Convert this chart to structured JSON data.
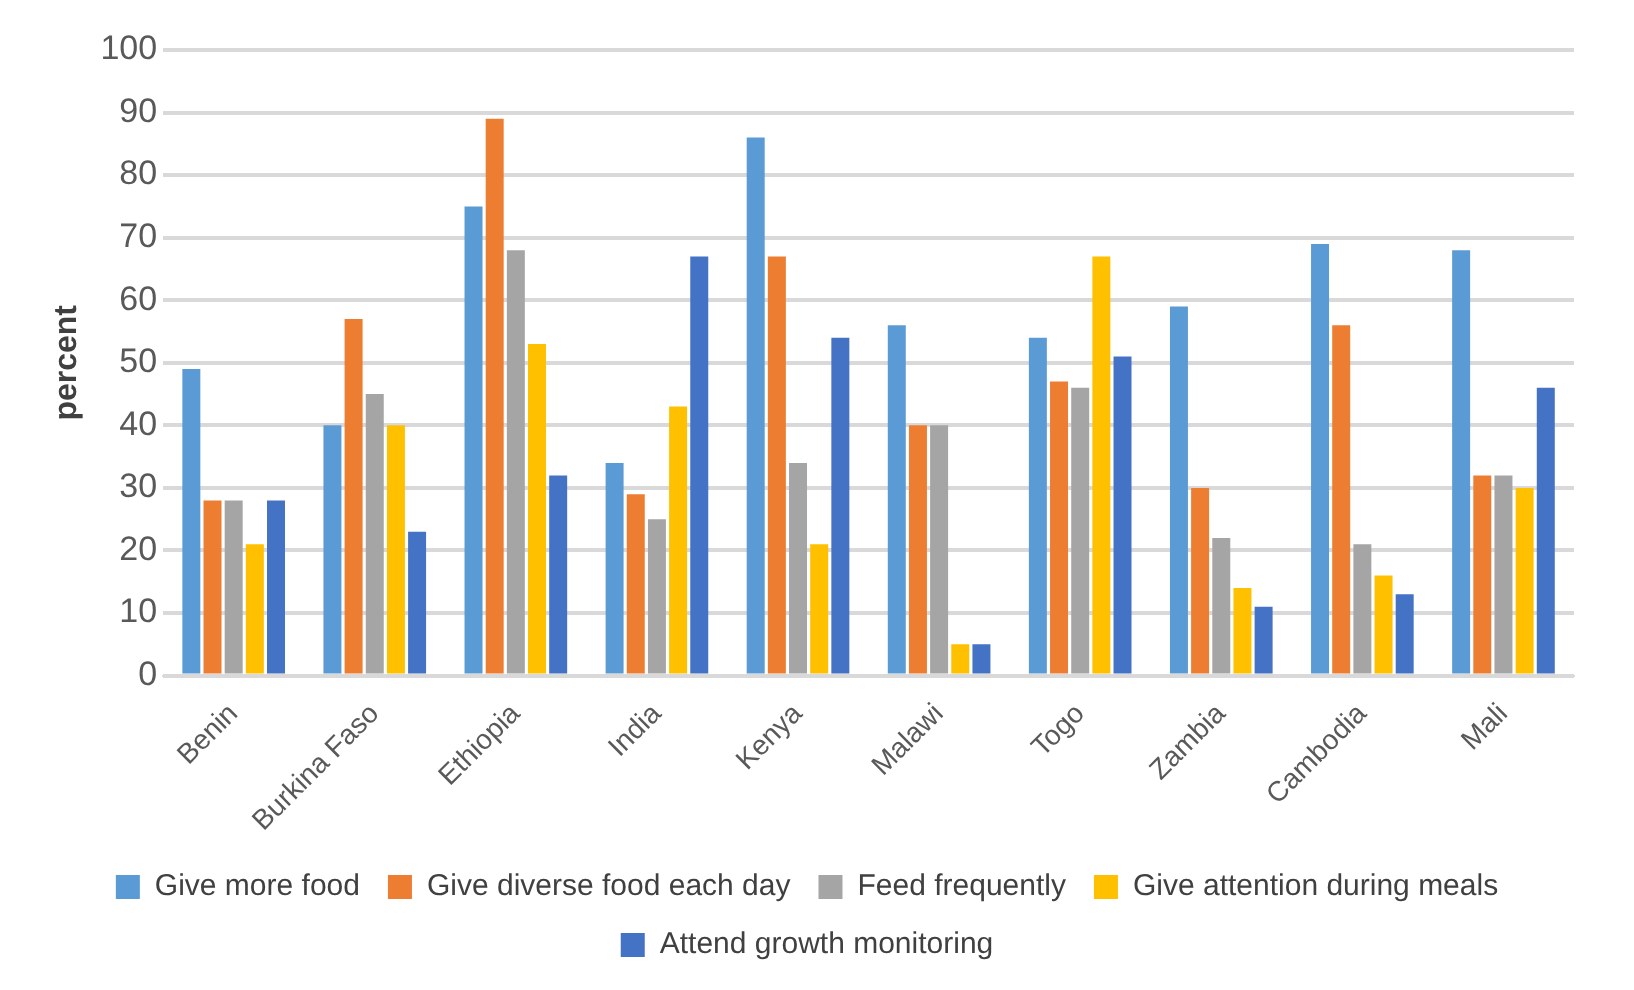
{
  "chart_data": {
    "type": "bar",
    "ylabel": "percent",
    "categories": [
      "Benin",
      "Burkina Faso",
      "Ethiopia",
      "India",
      "Kenya",
      "Malawi",
      "Togo",
      "Zambia",
      "Cambodia",
      "Mali"
    ],
    "series": [
      {
        "name": "Give more food",
        "color": "#5b9bd5",
        "values": [
          49,
          40,
          75,
          34,
          86,
          56,
          54,
          59,
          69,
          68
        ]
      },
      {
        "name": "Give diverse food each day",
        "color": "#ed7d31",
        "values": [
          28,
          57,
          89,
          29,
          67,
          40,
          47,
          30,
          56,
          32
        ]
      },
      {
        "name": "Feed frequently",
        "color": "#a5a5a5",
        "values": [
          28,
          45,
          68,
          25,
          34,
          40,
          46,
          22,
          21,
          32
        ]
      },
      {
        "name": "Give attention during meals",
        "color": "#ffc000",
        "values": [
          21,
          40,
          53,
          43,
          21,
          5,
          67,
          14,
          16,
          30
        ]
      },
      {
        "name": "Attend growth monitoring",
        "color": "#4472c4",
        "values": [
          28,
          23,
          32,
          67,
          54,
          5,
          51,
          11,
          13,
          46
        ]
      }
    ],
    "ylim": [
      0,
      100
    ],
    "yticks": [
      0,
      10,
      20,
      30,
      40,
      50,
      60,
      70,
      80,
      90,
      100
    ],
    "grid": "y",
    "legend": "bottom"
  }
}
